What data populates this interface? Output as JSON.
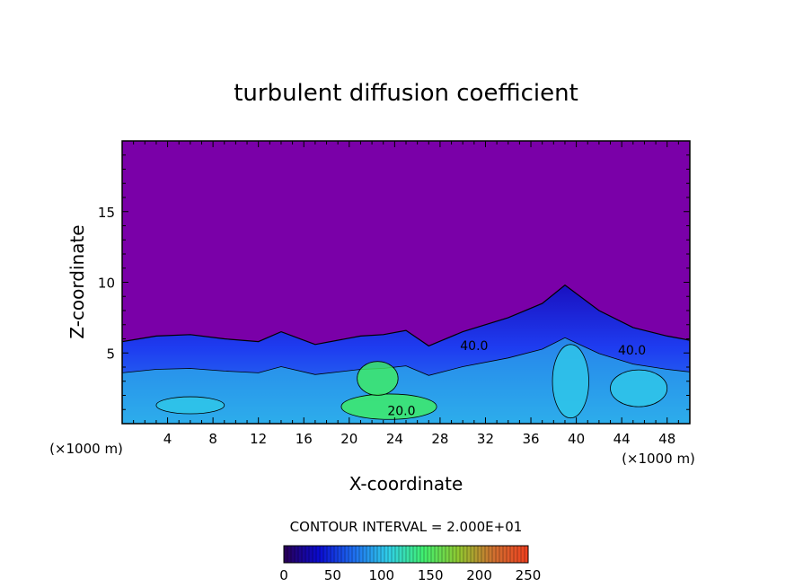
{
  "chart_data": {
    "type": "heatmap",
    "title": "turbulent diffusion coefficient",
    "xlabel": "X-coordinate",
    "ylabel": "Z-coordinate",
    "x_unit_left": "(×1000 m)",
    "x_unit_right": "(×1000 m)",
    "xlim": [
      0,
      50
    ],
    "ylim": [
      0,
      20
    ],
    "x_ticks": [
      4,
      8,
      12,
      16,
      20,
      24,
      28,
      32,
      36,
      40,
      44,
      48
    ],
    "y_ticks": [
      5,
      10,
      15
    ],
    "contour_interval_label": "CONTOUR INTERVAL = 2.000E+01",
    "contour_interval": 20,
    "contour_labels": [
      {
        "text": "40.0",
        "x": 31.0,
        "z": 5.2
      },
      {
        "text": "40.0",
        "x": 44.9,
        "z": 4.9
      },
      {
        "text": "20.0",
        "x": 24.6,
        "z": 0.6
      }
    ],
    "colorbar": {
      "min": 0,
      "max": 250,
      "ticks": [
        0,
        50,
        100,
        150,
        200,
        250
      ],
      "stops": [
        "#2a0055",
        "#0a0ad0",
        "#1e6ef0",
        "#30d0e8",
        "#40f070",
        "#90c830",
        "#d07030",
        "#f04020"
      ]
    },
    "field_top_estimate": [
      {
        "x": 0,
        "z": 5.8
      },
      {
        "x": 3,
        "z": 6.2
      },
      {
        "x": 6,
        "z": 6.3
      },
      {
        "x": 9,
        "z": 6.0
      },
      {
        "x": 12,
        "z": 5.8
      },
      {
        "x": 14,
        "z": 6.5
      },
      {
        "x": 17,
        "z": 5.6
      },
      {
        "x": 21,
        "z": 6.2
      },
      {
        "x": 23,
        "z": 6.3
      },
      {
        "x": 25,
        "z": 6.6
      },
      {
        "x": 27,
        "z": 5.5
      },
      {
        "x": 30,
        "z": 6.5
      },
      {
        "x": 34,
        "z": 7.5
      },
      {
        "x": 37,
        "z": 8.5
      },
      {
        "x": 39,
        "z": 9.8
      },
      {
        "x": 42,
        "z": 8.0
      },
      {
        "x": 45,
        "z": 6.8
      },
      {
        "x": 48,
        "z": 6.2
      },
      {
        "x": 50,
        "z": 5.9
      }
    ],
    "colors": {
      "background_field": "#7a00a8",
      "low_values": "#1e3cf0",
      "mid_values": "#30c8e8",
      "high_values": "#40f060"
    }
  }
}
